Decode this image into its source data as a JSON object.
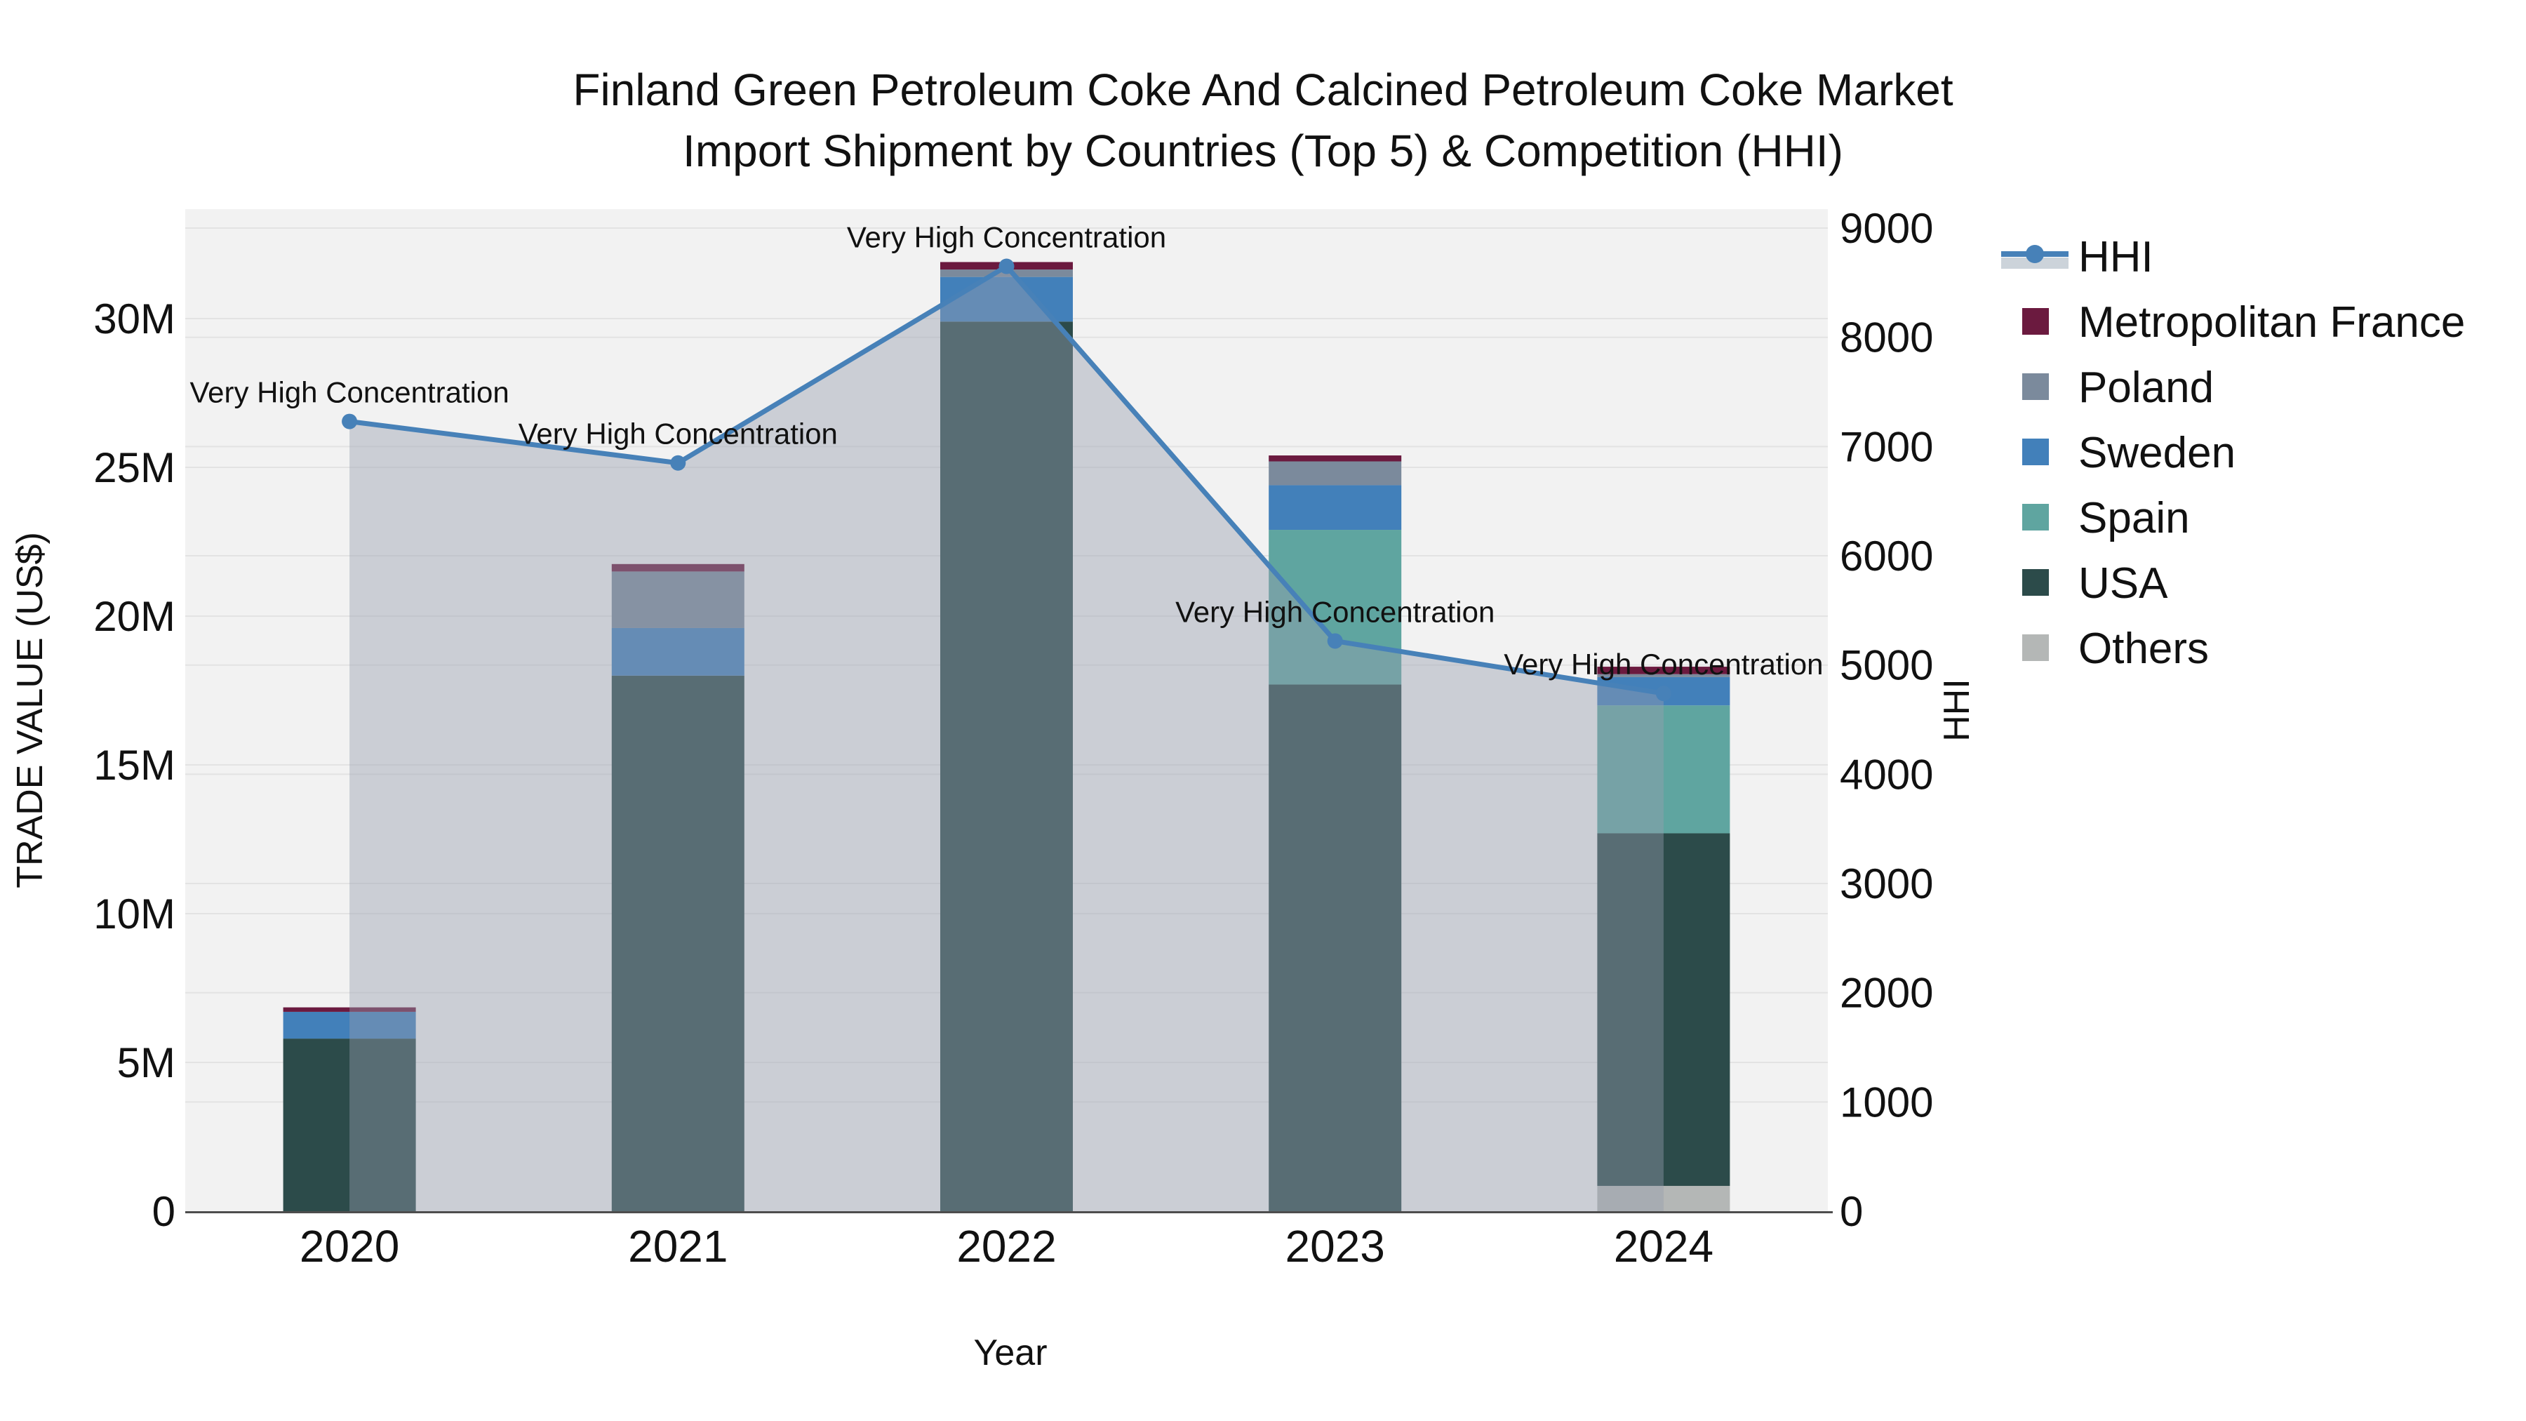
{
  "title": {
    "line1": "Finland Green Petroleum Coke And Calcined Petroleum Coke Market",
    "line2": "Import Shipment by Countries (Top 5) & Competition (HHI)"
  },
  "axes": {
    "x_label": "Year",
    "y_left_label": "TRADE VALUE (US$)",
    "y_right_label": "HHI",
    "y_left_ticks": [
      "0",
      "5M",
      "10M",
      "15M",
      "20M",
      "25M",
      "30M"
    ],
    "y_right_ticks": [
      "0",
      "1000",
      "2000",
      "3000",
      "4000",
      "5000",
      "6000",
      "7000",
      "8000",
      "9000"
    ]
  },
  "annotation_text": "Very High Concentration",
  "legend": {
    "items": [
      {
        "label": "HHI",
        "color": "#4781b8",
        "type": "line"
      },
      {
        "label": "Metropolitan France",
        "color": "#6b1a3f",
        "type": "swatch"
      },
      {
        "label": "Poland",
        "color": "#7b8a9c",
        "type": "swatch"
      },
      {
        "label": "Sweden",
        "color": "#4280ba",
        "type": "swatch"
      },
      {
        "label": "Spain",
        "color": "#5fa5a0",
        "type": "swatch"
      },
      {
        "label": "USA",
        "color": "#2c4b4a",
        "type": "swatch"
      },
      {
        "label": "Others",
        "color": "#b4b7b6",
        "type": "swatch"
      }
    ]
  },
  "chart_data": {
    "type": "bar+line",
    "title": "Finland Green Petroleum Coke And Calcined Petroleum Coke Market Import Shipment by Countries (Top 5) & Competition (HHI)",
    "categories": [
      "2020",
      "2021",
      "2022",
      "2023",
      "2024"
    ],
    "bar_value_unit": "million US$",
    "series": [
      {
        "name": "Others",
        "color": "#b4b7b6",
        "values": [
          0,
          0,
          0,
          0,
          0.85
        ]
      },
      {
        "name": "USA",
        "color": "#2c4b4a",
        "values": [
          5.8,
          18.0,
          29.9,
          17.7,
          11.85
        ]
      },
      {
        "name": "Spain",
        "color": "#5fa5a0",
        "values": [
          0,
          0,
          0,
          5.2,
          4.3
        ]
      },
      {
        "name": "Sweden",
        "color": "#4280ba",
        "values": [
          0.9,
          1.6,
          1.5,
          1.5,
          0.95
        ]
      },
      {
        "name": "Poland",
        "color": "#7b8a9c",
        "values": [
          0,
          1.9,
          0.25,
          0.8,
          0.1
        ]
      },
      {
        "name": "Metropolitan France",
        "color": "#6b1a3f",
        "values": [
          0.15,
          0.25,
          0.25,
          0.2,
          0.25
        ]
      }
    ],
    "bar_totals": [
      6.85,
      21.75,
      31.9,
      25.4,
      18.3
    ],
    "hhi": {
      "name": "HHI",
      "color": "#4781b8",
      "area_fill": "rgba(150,158,175,0.42)",
      "values": [
        7230,
        6850,
        8650,
        5220,
        4740
      ],
      "annotations": [
        "Very High Concentration",
        "Very High Concentration",
        "Very High Concentration",
        "Very High Concentration",
        "Very High Concentration"
      ]
    },
    "y_left": {
      "label": "TRADE VALUE (US$)",
      "min": 0,
      "max": 33.7,
      "tick_values": [
        0,
        5,
        10,
        15,
        20,
        25,
        30
      ],
      "tick_labels": [
        "0",
        "5M",
        "10M",
        "15M",
        "20M",
        "25M",
        "30M"
      ]
    },
    "y_right": {
      "label": "HHI",
      "min": 0,
      "max": 9170,
      "tick_values": [
        0,
        1000,
        2000,
        3000,
        4000,
        5000,
        6000,
        7000,
        8000,
        9000
      ],
      "tick_labels": [
        "0",
        "1000",
        "2000",
        "3000",
        "4000",
        "5000",
        "6000",
        "7000",
        "8000",
        "9000"
      ]
    },
    "xlabel": "Year",
    "legend_position": "right",
    "grid": true,
    "colors": {
      "plot_bg": "#f2f2f2",
      "gridline": "#e3e3e3",
      "axis_line": "#4d4d4d",
      "text": "#111111"
    }
  }
}
